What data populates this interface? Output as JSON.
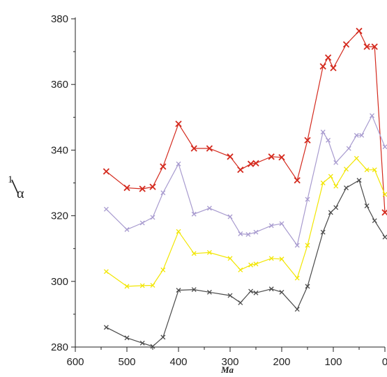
{
  "chart_data": {
    "type": "line",
    "title": "",
    "xlabel": "Ma",
    "ylabel": {
      "numerator": "1",
      "denominator": "α"
    },
    "xlim": [
      600,
      0
    ],
    "ylim": [
      280,
      380
    ],
    "x_ticks": [
      600,
      500,
      400,
      300,
      200,
      100,
      0
    ],
    "y_ticks": [
      280,
      300,
      320,
      340,
      360,
      380
    ],
    "grid": false,
    "legend": "none",
    "series": [
      {
        "color": "#d42a1e",
        "marker": "x",
        "x": [
          540,
          500,
          470,
          450,
          430,
          400,
          370,
          340,
          300,
          280,
          260,
          250,
          220,
          200,
          170,
          150,
          120,
          110,
          100,
          75,
          50,
          35,
          20,
          0
        ],
        "y": [
          333.5,
          328.5,
          328.2,
          328.8,
          335,
          348,
          340.5,
          340.5,
          338,
          334,
          335.8,
          336,
          338,
          337.8,
          330.8,
          343,
          365.5,
          368.2,
          365,
          372.2,
          376.3,
          371.5,
          371.5,
          321
        ]
      },
      {
        "color": "#a89bcf",
        "marker": "x",
        "x": [
          540,
          500,
          470,
          450,
          430,
          400,
          370,
          340,
          300,
          280,
          265,
          250,
          220,
          200,
          170,
          150,
          120,
          110,
          95,
          70,
          55,
          45,
          25,
          0
        ],
        "y": [
          322,
          315.8,
          317.8,
          319.5,
          327,
          335.8,
          320.5,
          322.3,
          319.7,
          314.5,
          314.3,
          315,
          317,
          317.6,
          311,
          325,
          345.5,
          343,
          336.2,
          340.5,
          344.5,
          344.5,
          350.5,
          341
        ]
      },
      {
        "color": "#f2e600",
        "marker": "x",
        "x": [
          540,
          500,
          470,
          450,
          430,
          400,
          370,
          340,
          300,
          280,
          260,
          250,
          220,
          200,
          170,
          150,
          120,
          105,
          95,
          75,
          55,
          35,
          20,
          0
        ],
        "y": [
          303,
          298.5,
          298.7,
          298.8,
          303.5,
          315.2,
          308.5,
          308.8,
          307,
          303.5,
          305,
          305.3,
          307,
          306.8,
          301,
          311,
          330,
          332,
          329,
          334.2,
          337.5,
          334,
          334,
          326.5
        ]
      },
      {
        "color": "#4a4a4a",
        "marker": "x",
        "x": [
          540,
          500,
          470,
          450,
          430,
          400,
          370,
          340,
          300,
          280,
          260,
          250,
          220,
          200,
          170,
          150,
          120,
          105,
          95,
          75,
          50,
          35,
          20,
          0
        ],
        "y": [
          286,
          282.8,
          281.2,
          280.2,
          283,
          297.3,
          297.5,
          296.7,
          295.7,
          293.5,
          297,
          296.5,
          297.7,
          296.7,
          291.5,
          298.5,
          315,
          321,
          322.5,
          328.5,
          330.8,
          323,
          318.5,
          313.5
        ]
      }
    ]
  }
}
